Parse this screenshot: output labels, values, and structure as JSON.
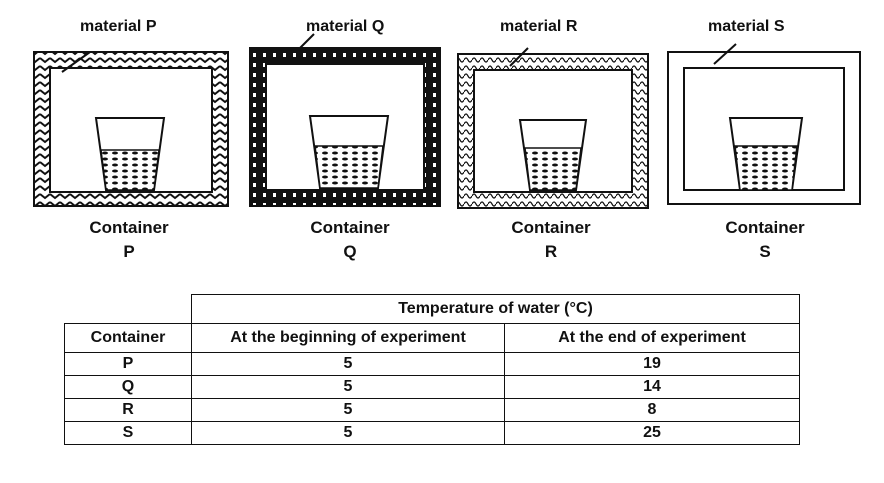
{
  "containers": [
    {
      "material_label": "material P",
      "caption_line1": "Container",
      "caption_line2": "P"
    },
    {
      "material_label": "material Q",
      "caption_line1": "Container",
      "caption_line2": "Q"
    },
    {
      "material_label": "material R",
      "caption_line1": "Container",
      "caption_line2": "R"
    },
    {
      "material_label": "material S",
      "caption_line1": "Container",
      "caption_line2": "S"
    }
  ],
  "table": {
    "group_header": "Temperature of water (°C)",
    "col_container": "Container",
    "col_begin": "At the beginning of experiment",
    "col_end": "At the end of experiment",
    "rows": [
      {
        "container": "P",
        "begin": "5",
        "end": "19"
      },
      {
        "container": "Q",
        "begin": "5",
        "end": "14"
      },
      {
        "container": "R",
        "begin": "5",
        "end": "8"
      },
      {
        "container": "S",
        "begin": "5",
        "end": "25"
      }
    ]
  }
}
